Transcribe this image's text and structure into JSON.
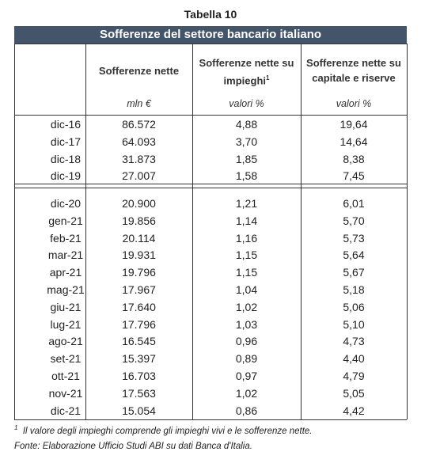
{
  "header": {
    "title": "Tabella 10",
    "subtitle": "Sofferenze del settore bancario italiano"
  },
  "columns": [
    {
      "label": "Sofferenze nette",
      "unit": "mln €"
    },
    {
      "label": "Sofferenze nette su impieghi",
      "sup": "1",
      "unit": "valori %"
    },
    {
      "label": "Sofferenze nette su capitale e riserve",
      "unit": "valori %"
    }
  ],
  "groups": [
    [
      [
        "dic-16",
        "86.572",
        "4,88",
        "19,64"
      ],
      [
        "dic-17",
        "64.093",
        "3,70",
        "14,64"
      ],
      [
        "dic-18",
        "31.873",
        "1,85",
        "8,38"
      ],
      [
        "dic-19",
        "27.007",
        "1,58",
        "7,45"
      ]
    ],
    [
      [
        "dic-20",
        "20.900",
        "1,21",
        "6,01"
      ],
      [
        "gen-21",
        "19.856",
        "1,14",
        "5,70"
      ],
      [
        "feb-21",
        "20.114",
        "1,16",
        "5,73"
      ],
      [
        "mar-21",
        "19.931",
        "1,15",
        "5,64"
      ],
      [
        "apr-21",
        "19.796",
        "1,15",
        "5,67"
      ],
      [
        "mag-21",
        "17.967",
        "1,04",
        "5,18"
      ],
      [
        "giu-21",
        "17.640",
        "1,02",
        "5,06"
      ],
      [
        "lug-21",
        "17.796",
        "1,03",
        "5,10"
      ],
      [
        "ago-21",
        "16.545",
        "0,96",
        "4,73"
      ],
      [
        "set-21",
        "15.397",
        "0,89",
        "4,40"
      ],
      [
        "ott-21",
        "16.703",
        "0,97",
        "4,79"
      ],
      [
        "nov-21",
        "17.563",
        "1,02",
        "5,05"
      ],
      [
        "dic-21",
        "15.054",
        "0,86",
        "4,42"
      ]
    ]
  ],
  "footnote": {
    "mark": "1",
    "text": "Il valore degli impieghi comprende gli impieghi vivi e le sofferenze nette."
  },
  "source": "Fonte: Elaborazione Ufficio Studi ABI su dati Banca d'Italia."
}
